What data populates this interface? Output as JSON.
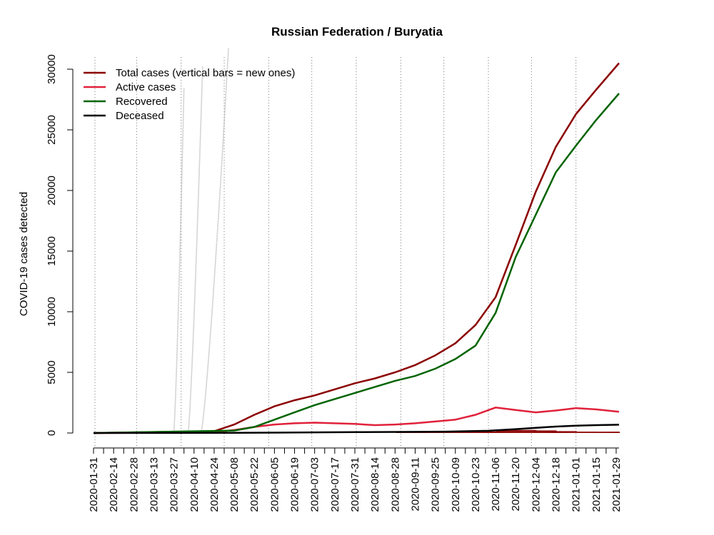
{
  "chart_data": {
    "type": "line",
    "title": "Russian Federation / Buryatia",
    "ylabel": "COVID-19 cases detected",
    "xlabel": "",
    "ylim": [
      0,
      31000
    ],
    "yticks": [
      0,
      5000,
      10000,
      15000,
      20000,
      25000,
      30000
    ],
    "x_range": [
      "2020-01-31",
      "2021-01-31"
    ],
    "xtick_labels": [
      "2020-01-31",
      "2020-02-14",
      "2020-02-28",
      "2020-03-13",
      "2020-03-27",
      "2020-04-10",
      "2020-04-24",
      "2020-05-08",
      "2020-05-22",
      "2020-06-05",
      "2020-06-19",
      "2020-07-03",
      "2020-07-17",
      "2020-07-31",
      "2020-08-14",
      "2020-08-28",
      "2020-09-11",
      "2020-09-25",
      "2020-10-09",
      "2020-10-23",
      "2020-11-06",
      "2020-11-20",
      "2020-12-04",
      "2020-12-18",
      "2021-01-01",
      "2021-01-15",
      "2021-01-29"
    ],
    "monthly_gridlines": [
      "2020-02-01",
      "2020-03-01",
      "2020-04-01",
      "2020-05-01",
      "2020-06-01",
      "2020-07-01",
      "2020-08-01",
      "2020-09-01",
      "2020-10-01",
      "2020-11-01",
      "2020-12-01",
      "2021-01-01"
    ],
    "legend_position": "top-left",
    "legend": [
      {
        "label": "Total cases (vertical bars = new ones)",
        "color": "#8b0000"
      },
      {
        "label": "Active cases",
        "color": "#e0213a"
      },
      {
        "label": "Recovered",
        "color": "#006400"
      },
      {
        "label": "Deceased",
        "color": "#000000"
      }
    ],
    "series": [
      {
        "name": "Total cases (vertical bars = new ones)",
        "color": "#8b0000",
        "points": [
          [
            "2020-01-31",
            0
          ],
          [
            "2020-04-24",
            150
          ],
          [
            "2020-05-08",
            700
          ],
          [
            "2020-05-22",
            1500
          ],
          [
            "2020-06-05",
            2200
          ],
          [
            "2020-06-19",
            2700
          ],
          [
            "2020-07-03",
            3100
          ],
          [
            "2020-07-17",
            3600
          ],
          [
            "2020-07-31",
            4100
          ],
          [
            "2020-08-14",
            4500
          ],
          [
            "2020-08-28",
            5000
          ],
          [
            "2020-09-11",
            5600
          ],
          [
            "2020-09-25",
            6400
          ],
          [
            "2020-10-09",
            7400
          ],
          [
            "2020-10-23",
            8900
          ],
          [
            "2020-11-06",
            11200
          ],
          [
            "2020-11-20",
            15500
          ],
          [
            "2020-12-04",
            19900
          ],
          [
            "2020-12-18",
            23600
          ],
          [
            "2021-01-01",
            26300
          ],
          [
            "2021-01-15",
            28300
          ],
          [
            "2021-01-31",
            30500
          ]
        ]
      },
      {
        "name": "Active cases",
        "color": "#e0213a",
        "points": [
          [
            "2020-01-31",
            0
          ],
          [
            "2020-04-24",
            50
          ],
          [
            "2020-05-08",
            250
          ],
          [
            "2020-05-22",
            500
          ],
          [
            "2020-06-05",
            700
          ],
          [
            "2020-06-19",
            800
          ],
          [
            "2020-07-03",
            850
          ],
          [
            "2020-07-17",
            800
          ],
          [
            "2020-07-31",
            750
          ],
          [
            "2020-08-14",
            650
          ],
          [
            "2020-08-28",
            700
          ],
          [
            "2020-09-11",
            800
          ],
          [
            "2020-09-25",
            950
          ],
          [
            "2020-10-09",
            1100
          ],
          [
            "2020-10-23",
            1500
          ],
          [
            "2020-11-06",
            2100
          ],
          [
            "2020-11-20",
            1900
          ],
          [
            "2020-12-04",
            1700
          ],
          [
            "2020-12-18",
            1850
          ],
          [
            "2021-01-01",
            2050
          ],
          [
            "2021-01-15",
            1950
          ],
          [
            "2021-01-31",
            1750
          ]
        ]
      },
      {
        "name": "Recovered",
        "color": "#006400",
        "points": [
          [
            "2020-01-31",
            0
          ],
          [
            "2020-05-08",
            200
          ],
          [
            "2020-05-22",
            500
          ],
          [
            "2020-06-05",
            1100
          ],
          [
            "2020-06-19",
            1700
          ],
          [
            "2020-07-03",
            2300
          ],
          [
            "2020-07-17",
            2800
          ],
          [
            "2020-07-31",
            3300
          ],
          [
            "2020-08-14",
            3800
          ],
          [
            "2020-08-28",
            4300
          ],
          [
            "2020-09-11",
            4700
          ],
          [
            "2020-09-25",
            5300
          ],
          [
            "2020-10-09",
            6100
          ],
          [
            "2020-10-23",
            7200
          ],
          [
            "2020-11-06",
            9900
          ],
          [
            "2020-11-20",
            14500
          ],
          [
            "2020-12-04",
            18000
          ],
          [
            "2020-12-18",
            21500
          ],
          [
            "2021-01-01",
            23700
          ],
          [
            "2021-01-15",
            25800
          ],
          [
            "2021-01-31",
            28000
          ]
        ]
      },
      {
        "name": "Deceased",
        "color": "#000000",
        "points": [
          [
            "2020-01-31",
            0
          ],
          [
            "2020-05-08",
            10
          ],
          [
            "2020-06-05",
            30
          ],
          [
            "2020-07-03",
            50
          ],
          [
            "2020-08-01",
            70
          ],
          [
            "2020-09-01",
            90
          ],
          [
            "2020-10-01",
            110
          ],
          [
            "2020-11-01",
            180
          ],
          [
            "2020-11-20",
            320
          ],
          [
            "2020-12-04",
            430
          ],
          [
            "2020-12-18",
            530
          ],
          [
            "2021-01-01",
            600
          ],
          [
            "2021-01-15",
            650
          ],
          [
            "2021-01-31",
            680
          ]
        ]
      }
    ],
    "background_series_count": 60
  }
}
